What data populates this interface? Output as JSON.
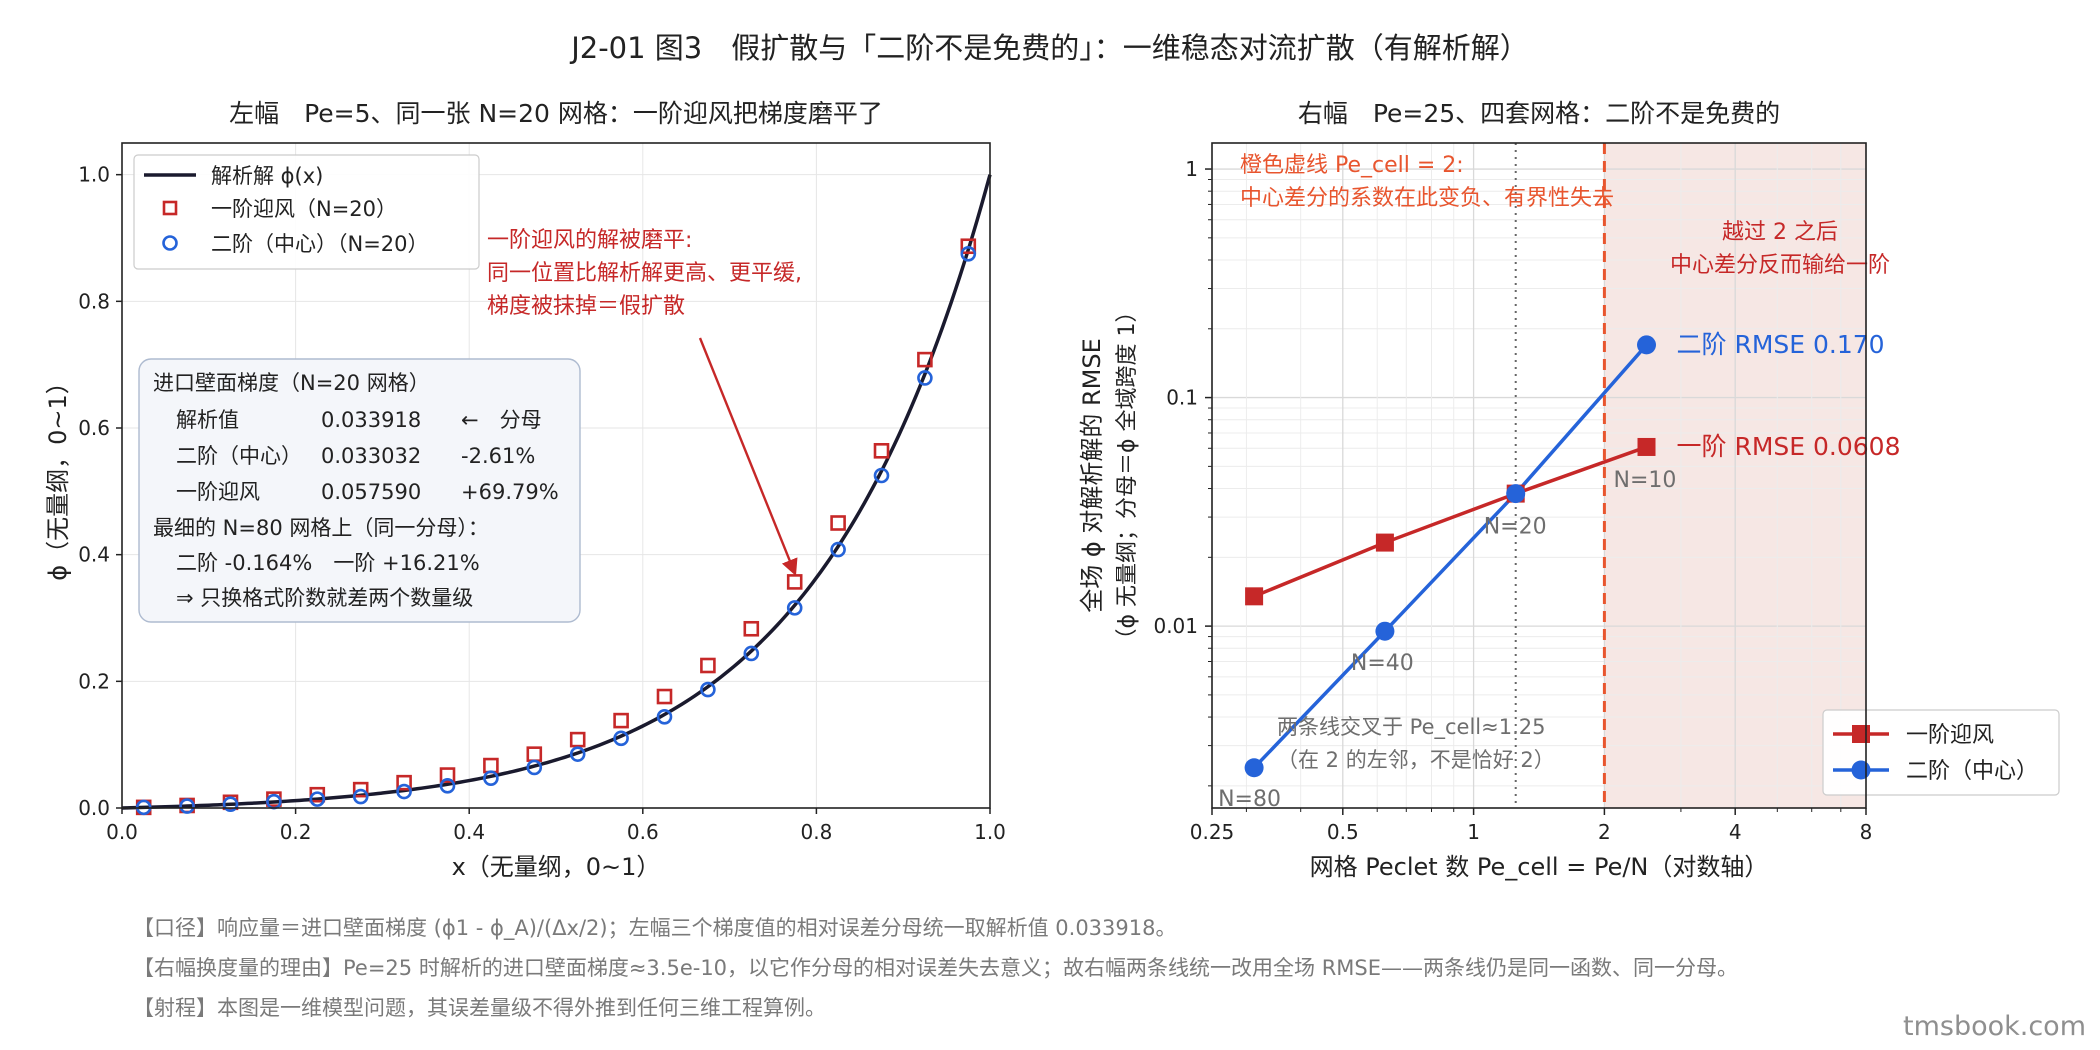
{
  "figure": {
    "title": "J2-01 图3　假扩散与「二阶不是免费的」：一维稳态对流扩散（有解析解）",
    "notes": [
      "【口径】响应量＝进口壁面梯度 (ϕ1 - ϕ_A)/(Δx/2)；左幅三个梯度值的相对误差分母统一取解析值 0.033918。",
      "【右幅换度量的理由】Pe=25 时解析的进口壁面梯度≈3.5e-10，以它作分母的相对误差失去意义；故右幅两条线统一改用全场 RMSE——两条线仍是同一函数、同一分母。",
      "【射程】本图是一维模型问题，其误差量级不得外推到任何三维工程算例。"
    ],
    "watermark": "tmsbook.com"
  },
  "colors": {
    "analytic": "#1a1a2e",
    "upwind": "#c62828",
    "central": "#2563d9",
    "orange": "#e8552e",
    "annotation_red": "#c62828",
    "gray_text": "#6e6e6e"
  },
  "chart_data": [
    {
      "type": "line",
      "title": "左幅　Pe=5、同一张 N=20 网格：一阶迎风把梯度磨平了",
      "xlabel": "x（无量纲，0~1）",
      "ylabel": "ϕ（无量纲，0~1）",
      "xlim": [
        0,
        1
      ],
      "ylim": [
        0,
        1.05
      ],
      "xticks": [
        0,
        0.2,
        0.4,
        0.6,
        0.8,
        1.0
      ],
      "xtick_labels": [
        "0.0",
        "0.2",
        "0.4",
        "0.6",
        "0.8",
        "1.0"
      ],
      "yticks": [
        0,
        0.2,
        0.4,
        0.6,
        0.8,
        1.0
      ],
      "ytick_labels": [
        "0.0",
        "0.2",
        "0.4",
        "0.6",
        "0.8",
        "1.0"
      ],
      "grid": true,
      "legend_position": "top-left",
      "analytic": {
        "name": "解析解 ϕ(x)",
        "pe": 5
      },
      "series": [
        {
          "name": "一阶迎风（N=20）",
          "marker": "square",
          "x": [
            0.025,
            0.075,
            0.125,
            0.175,
            0.225,
            0.275,
            0.325,
            0.375,
            0.425,
            0.475,
            0.525,
            0.575,
            0.625,
            0.675,
            0.725,
            0.775,
            0.825,
            0.875,
            0.925,
            0.975
          ],
          "y": [
            0.001,
            0.004,
            0.009,
            0.014,
            0.021,
            0.029,
            0.04,
            0.052,
            0.067,
            0.085,
            0.108,
            0.138,
            0.176,
            0.225,
            0.283,
            0.357,
            0.45,
            0.564,
            0.708,
            0.887
          ]
        },
        {
          "name": "二阶（中心）（N=20）",
          "marker": "circle",
          "x": [
            0.025,
            0.075,
            0.125,
            0.175,
            0.225,
            0.275,
            0.325,
            0.375,
            0.425,
            0.475,
            0.525,
            0.575,
            0.625,
            0.675,
            0.725,
            0.775,
            0.825,
            0.875,
            0.925,
            0.975
          ],
          "y": [
            0.001,
            0.003,
            0.006,
            0.01,
            0.014,
            0.018,
            0.026,
            0.035,
            0.047,
            0.064,
            0.085,
            0.11,
            0.144,
            0.187,
            0.244,
            0.316,
            0.408,
            0.525,
            0.679,
            0.875
          ]
        }
      ],
      "annotation": {
        "lines": [
          "一阶迎风的解被磨平:",
          "同一位置比解析解更高、更平缓,",
          "梯度被抹掉＝假扩散"
        ],
        "arrow_to": [
          0.775,
          0.357
        ]
      },
      "info_box": {
        "title": "进口壁面梯度（N=20 网格）",
        "rows": [
          {
            "label": "解析值",
            "value": "0.033918",
            "extra": "←　分母"
          },
          {
            "label": "二阶（中心）",
            "value": "0.033032",
            "extra": "-2.61%"
          },
          {
            "label": "一阶迎风",
            "value": "0.057590",
            "extra": "+69.79%"
          }
        ],
        "fine_title": "最细的 N=80 网格上（同一分母）：",
        "fine_line": "二阶 -0.164%　一阶 +16.21%",
        "conclusion": "⇒ 只换格式阶数就差两个数量级"
      }
    },
    {
      "type": "line",
      "title": "右幅　Pe=25、四套网格：二阶不是免费的",
      "xlabel": "网格 Peclet 数 Pe_cell = Pe/N（对数轴）",
      "ylabel": "全场 ϕ 对解析解的 RMSE",
      "ylabel2": "（ϕ 无量纲；分母＝ϕ 全域跨度 1）",
      "x_scale": "log",
      "y_scale": "log",
      "xlim": [
        0.25,
        8
      ],
      "ylim": [
        0.0016,
        1.3
      ],
      "xticks": [
        0.25,
        0.5,
        1,
        2,
        4,
        8
      ],
      "xtick_labels": [
        "0.25",
        "0.5",
        "1",
        "2",
        "4",
        "8"
      ],
      "yticks": [
        0.01,
        0.1,
        1
      ],
      "ytick_labels": [
        "0.01",
        "0.1",
        "1"
      ],
      "grid": true,
      "legend_position": "bottom-right",
      "series": [
        {
          "name": "一阶迎风",
          "marker": "square",
          "x": [
            0.3125,
            0.625,
            1.25,
            2.5
          ],
          "y": [
            0.0135,
            0.0232,
            0.038,
            0.0608
          ]
        },
        {
          "name": "二阶（中心）",
          "marker": "circle",
          "x": [
            0.3125,
            0.625,
            1.25,
            2.5
          ],
          "y": [
            0.0024,
            0.0095,
            0.038,
            0.17
          ]
        }
      ],
      "point_labels": [
        {
          "text": "N=80",
          "x": 0.3125,
          "y": 0.0024
        },
        {
          "text": "N=40",
          "x": 0.625,
          "y": 0.0095
        },
        {
          "text": "N=20",
          "x": 1.25,
          "y": 0.038
        },
        {
          "text": "N=10",
          "x": 2.5,
          "y": 0.0608
        }
      ],
      "end_labels": [
        "一阶 RMSE 0.0608",
        "二阶 RMSE 0.170"
      ],
      "vline_cross": 1.25,
      "vline_limit": 2,
      "shade_from": 2,
      "orange_note": [
        "橙色虚线 Pe_cell = 2:",
        "中心差分的系数在此变负、有界性失去"
      ],
      "red_note": [
        "越过 2 之后",
        "中心差分反而输给一阶"
      ],
      "cross_note": [
        "两条线交叉于 Pe_cell≈1.25",
        "（在 2 的左邻，不是恰好 2）"
      ]
    }
  ]
}
